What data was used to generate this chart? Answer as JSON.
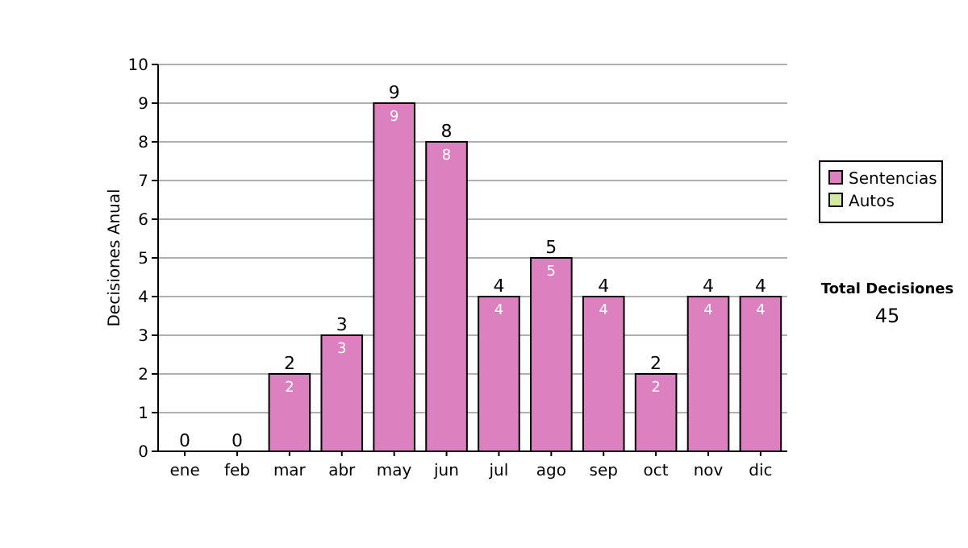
{
  "chart_data": {
    "type": "bar",
    "stacked": true,
    "ylabel": "Decisiones Anual",
    "categories": [
      "ene",
      "feb",
      "mar",
      "abr",
      "may",
      "jun",
      "jul",
      "ago",
      "sep",
      "oct",
      "nov",
      "dic"
    ],
    "series": [
      {
        "name": "Sentencias",
        "color": "#dd80c0",
        "values": [
          0,
          0,
          2,
          3,
          9,
          8,
          4,
          5,
          4,
          2,
          4,
          4
        ],
        "value_labels": [
          null,
          null,
          "2",
          "3",
          "9",
          "8",
          "4",
          "5",
          "4",
          "2",
          "4",
          "4"
        ]
      },
      {
        "name": "Autos",
        "color": "#d4e8a0",
        "values": [
          0,
          0,
          0,
          0,
          0,
          0,
          0,
          0,
          0,
          0,
          0,
          0
        ]
      }
    ],
    "totals": [
      "0",
      "0",
      "2",
      "3",
      "9",
      "8",
      "4",
      "5",
      "4",
      "2",
      "4",
      "4"
    ],
    "ylim": [
      0,
      10
    ],
    "yticks": [
      0,
      1,
      2,
      3,
      4,
      5,
      6,
      7,
      8,
      9,
      10
    ],
    "grid": "y",
    "legend": "right",
    "annotations": [
      "Total Decisiones",
      "45"
    ]
  }
}
